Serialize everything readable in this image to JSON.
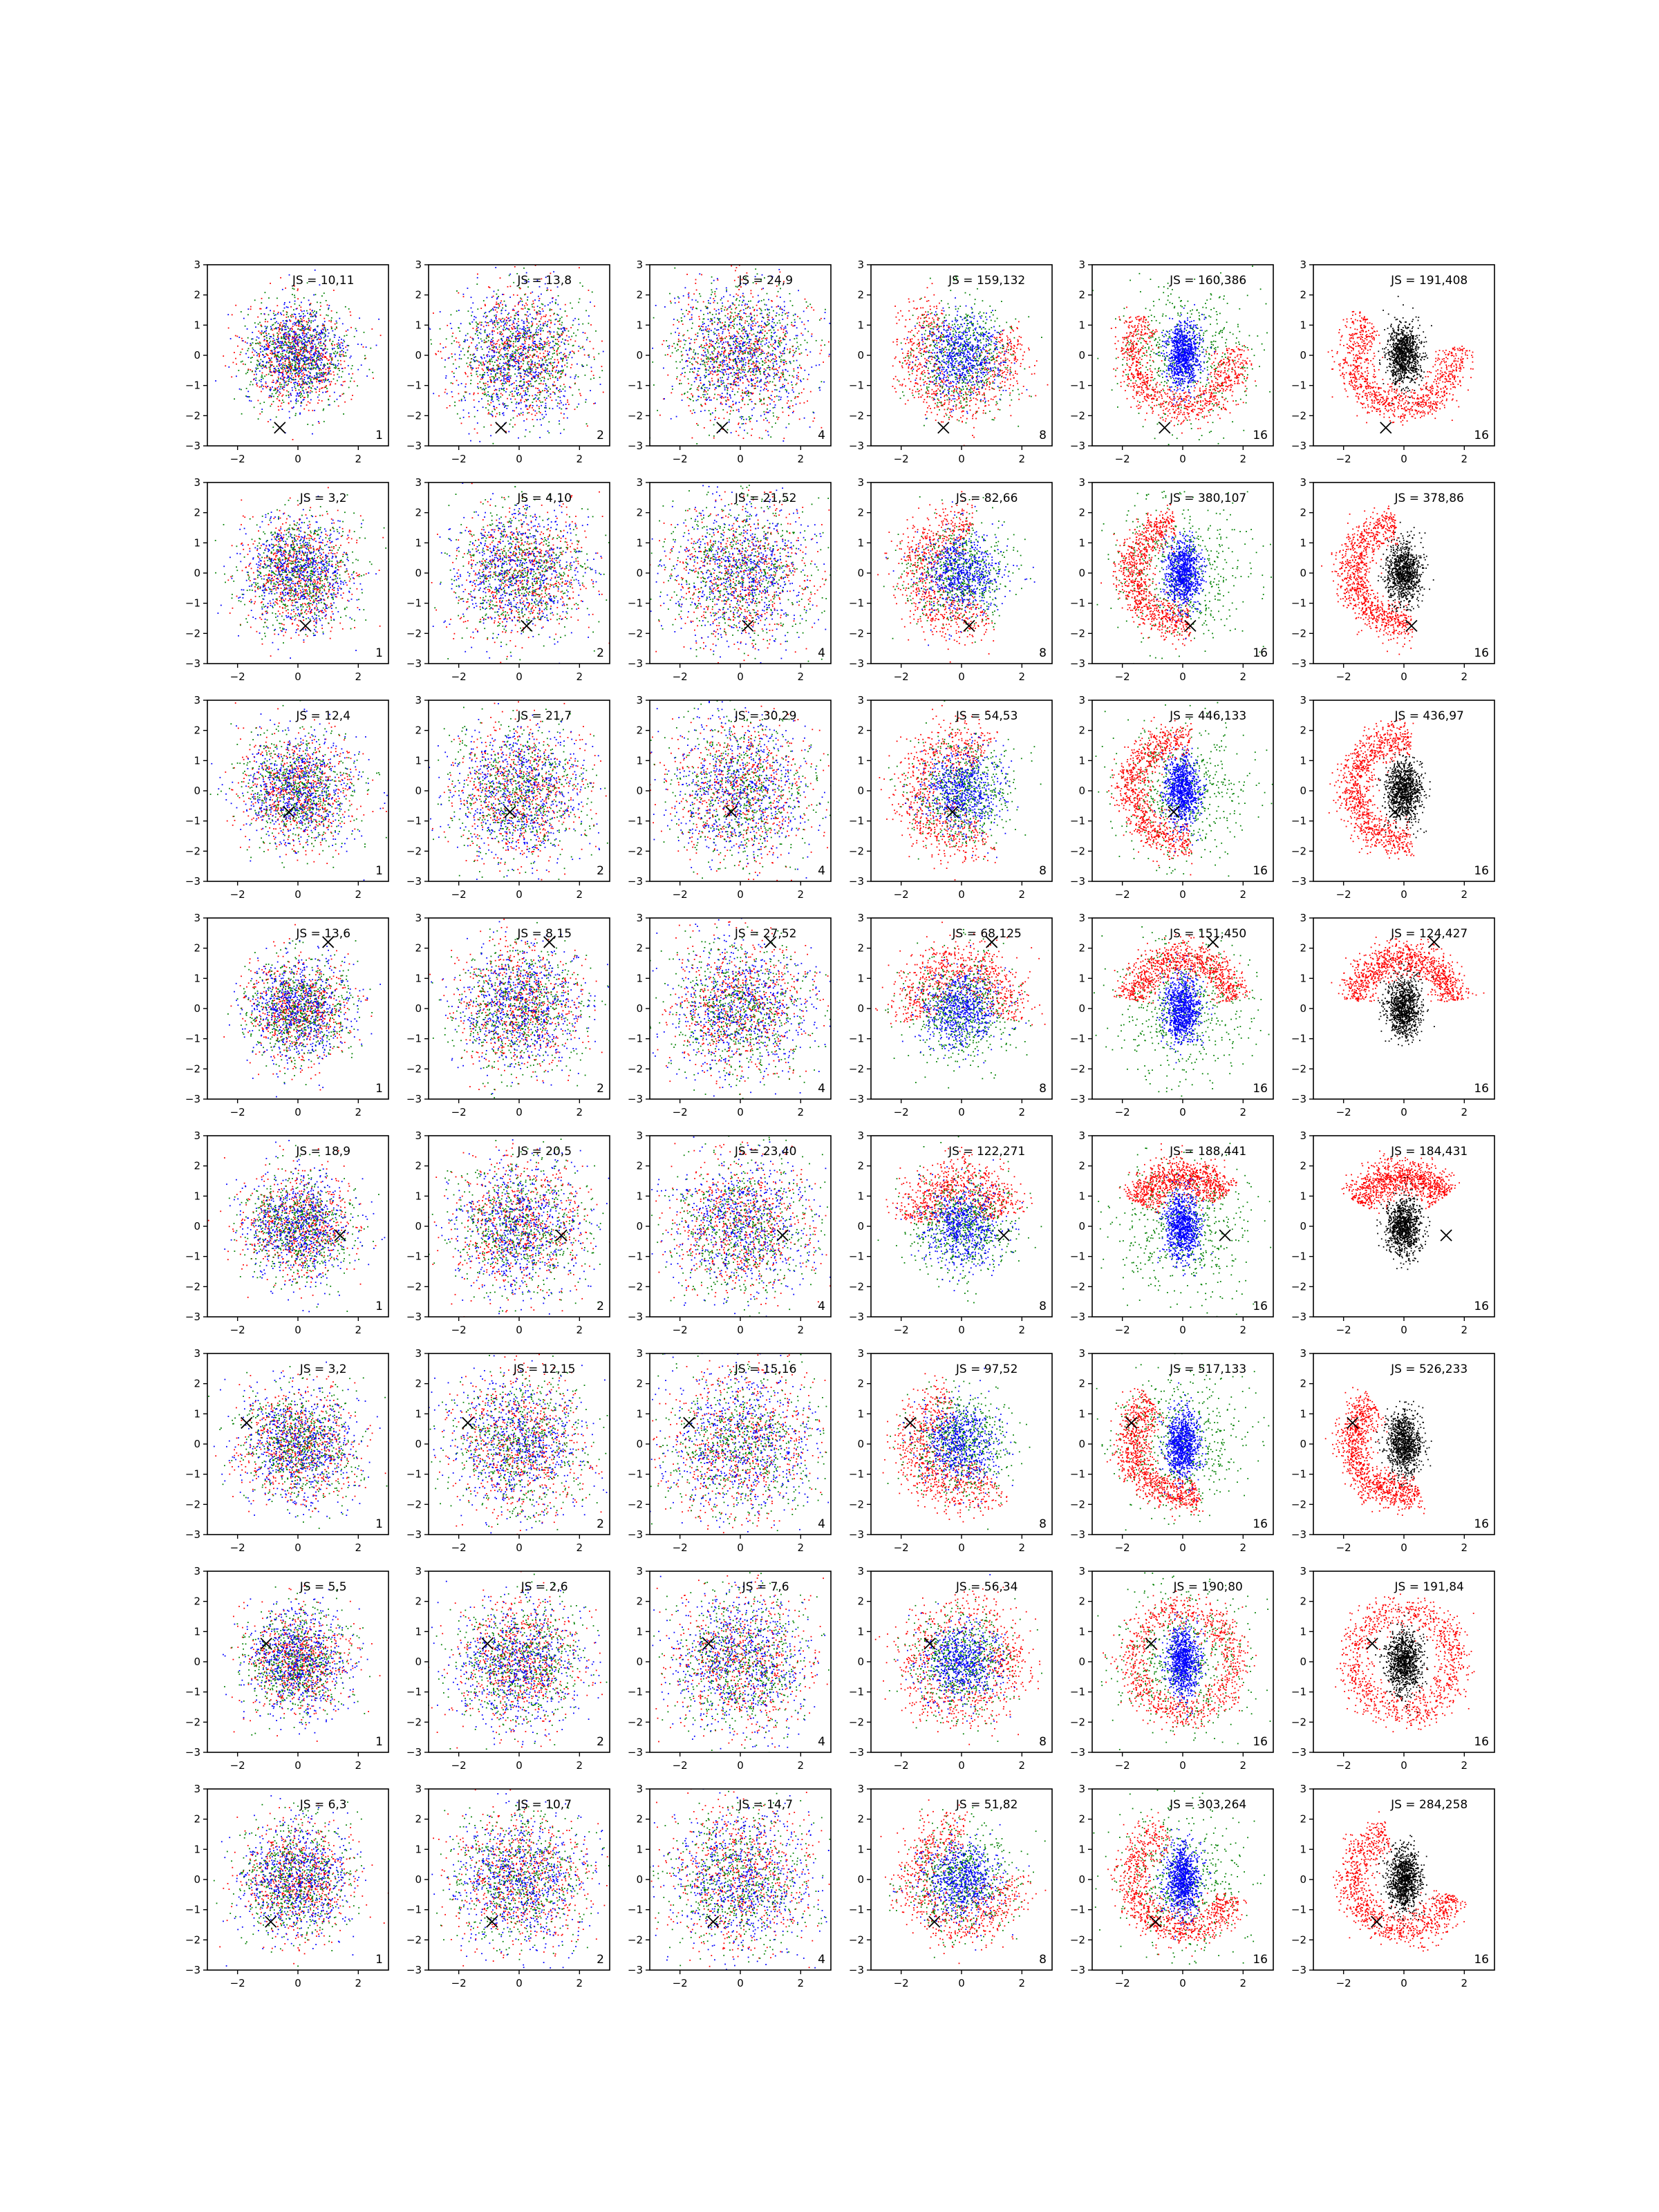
{
  "chart_data": {
    "type": "scatter",
    "layout": {
      "rows": 8,
      "cols": 6
    },
    "xlim": [
      -3,
      3
    ],
    "ylim": [
      -3,
      3
    ],
    "xticks": [
      -2,
      0,
      2
    ],
    "yticks": [
      -3,
      -2,
      -1,
      0,
      1,
      2,
      3
    ],
    "xtick_labels": [
      "−2",
      "0",
      "2"
    ],
    "ytick_labels": [
      "−3",
      "−2",
      "−1",
      "0",
      "1",
      "2",
      "3"
    ],
    "js_prefix": "JS = ",
    "column_counts": [
      "1",
      "2",
      "4",
      "8",
      "16",
      "16"
    ],
    "colors": {
      "red": "#ff0000",
      "green": "#008000",
      "blue": "#0000ff",
      "black": "#000000"
    },
    "rows": [
      {
        "marker": [
          -0.6,
          -2.4
        ],
        "js": [
          "10,11",
          "13,8",
          "24,9",
          "159,132",
          "160,386",
          "191,408"
        ]
      },
      {
        "marker": [
          0.25,
          -1.75
        ],
        "js": [
          "3,2",
          "4,10",
          "21,52",
          "82,66",
          "380,107",
          "378,86"
        ]
      },
      {
        "marker": [
          -0.3,
          -0.7
        ],
        "js": [
          "12,4",
          "21,7",
          "30,29",
          "54,53",
          "446,133",
          "436,97"
        ]
      },
      {
        "marker": [
          1.0,
          2.2
        ],
        "js": [
          "13,6",
          "8,15",
          "27,52",
          "68,125",
          "151,450",
          "124,427"
        ]
      },
      {
        "marker": [
          1.4,
          -0.3
        ],
        "js": [
          "18,9",
          "20,5",
          "23,40",
          "122,271",
          "188,441",
          "184,431"
        ]
      },
      {
        "marker": [
          -1.7,
          0.7
        ],
        "js": [
          "3,2",
          "12,15",
          "15,16",
          "97,52",
          "517,133",
          "526,233"
        ]
      },
      {
        "marker": [
          -1.05,
          0.6
        ],
        "js": [
          "5,5",
          "2,6",
          "7,6",
          "56,34",
          "190,80",
          "191,84"
        ]
      },
      {
        "marker": [
          -0.9,
          -1.4
        ],
        "js": [
          "6,3",
          "10,7",
          "14,7",
          "51,82",
          "303,264",
          "284,258"
        ]
      }
    ]
  }
}
